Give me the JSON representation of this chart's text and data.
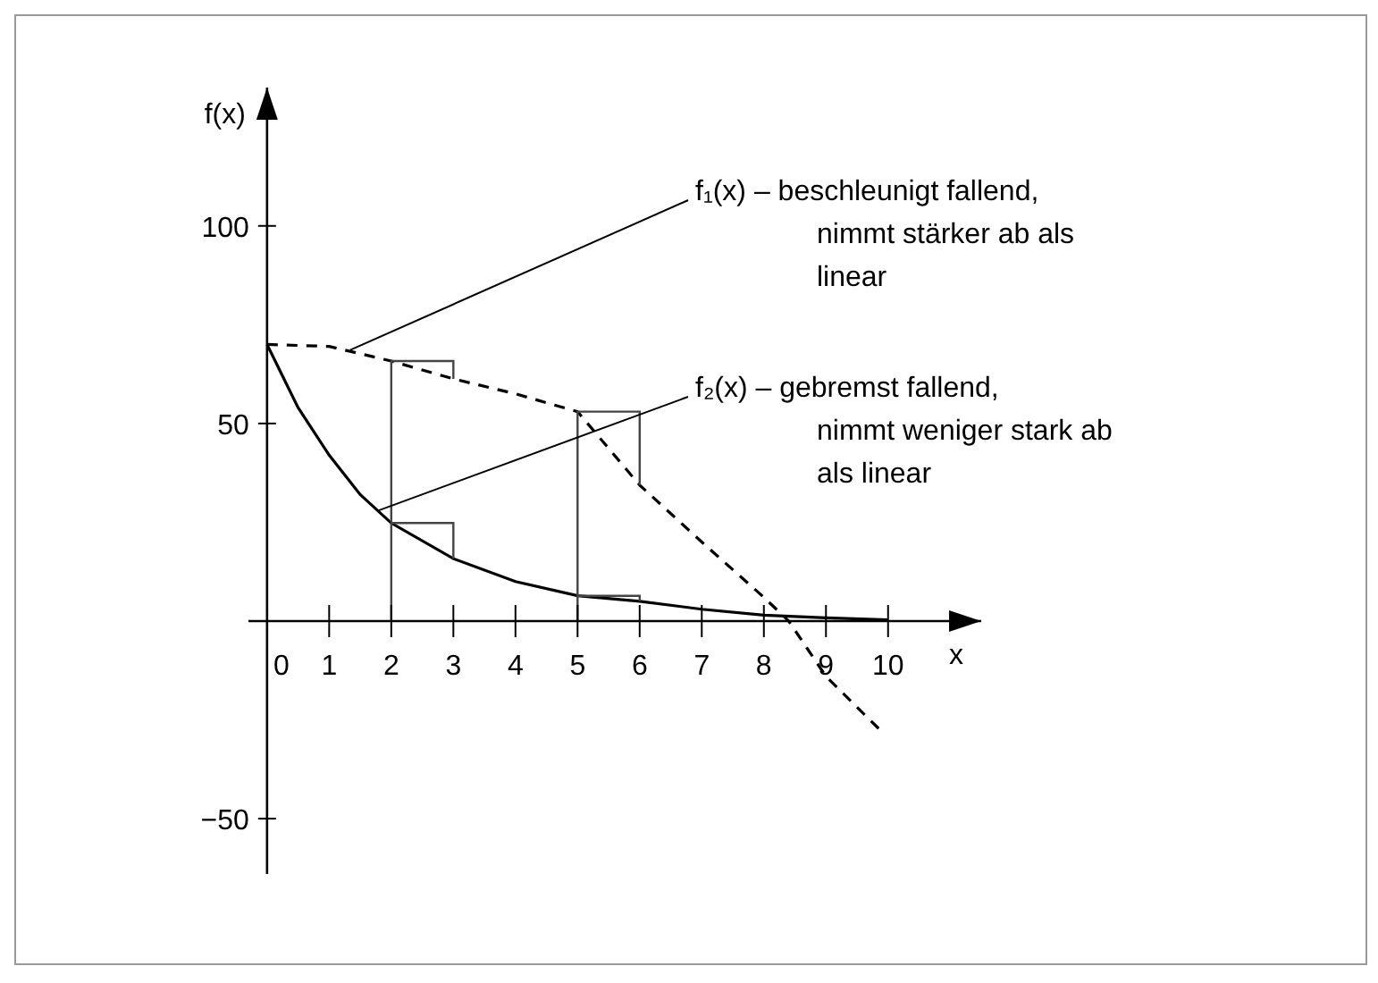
{
  "chart_data": {
    "type": "line",
    "xlabel": "x",
    "ylabel": "f(x)",
    "xlim": [
      -0.3,
      11.5
    ],
    "ylim": [
      -64,
      135
    ],
    "xticks": [
      0,
      1,
      2,
      3,
      4,
      5,
      6,
      7,
      8,
      9,
      10
    ],
    "yticks": [
      {
        "value": -50,
        "label": "−50"
      },
      50,
      100
    ],
    "marker": "none",
    "series": [
      {
        "x": [
          0,
          1,
          2,
          3,
          4,
          5,
          6,
          7,
          8,
          8.4,
          9,
          9.9
        ],
        "values": [
          70,
          69.5,
          65.8,
          61.3,
          57.5,
          53,
          34.4,
          20,
          6,
          0,
          -14,
          -28
        ],
        "color": "#000000",
        "line_style": "dashed"
      },
      {
        "x": [
          0,
          0.5,
          1,
          1.5,
          2,
          3,
          4,
          5,
          6,
          7,
          8,
          9,
          10
        ],
        "values": [
          70,
          54,
          42,
          32,
          24.8,
          15.8,
          10,
          6.4,
          5,
          3,
          1.5,
          0.8,
          0.3
        ],
        "color": "#000000",
        "line_style": "solid"
      },
      {
        "x": [
          2,
          2,
          3,
          3
        ],
        "values": [
          0,
          65.8,
          65.8,
          61.3
        ],
        "color": "#444444",
        "line_style": "solid"
      },
      {
        "x": [
          5,
          5,
          6,
          6
        ],
        "values": [
          0,
          53,
          53,
          34.4
        ],
        "color": "#444444",
        "line_style": "solid"
      },
      {
        "x": [
          2,
          3,
          3
        ],
        "values": [
          24.8,
          24.8,
          15.8
        ],
        "color": "#444444",
        "line_style": "solid"
      },
      {
        "x": [
          5,
          6,
          6
        ],
        "values": [
          6.4,
          6.4,
          5
        ],
        "color": "#444444",
        "line_style": "solid"
      }
    ],
    "annotations": [
      {
        "text": "f₁(x) – beschleunigt fallend, nimmt stärker ab als linear",
        "x": 1.34,
        "y": 68.6
      },
      {
        "text": "f₂(x) – gebremst fallend, nimmt weniger stark ab als linear",
        "x": 1.8,
        "y": 28
      }
    ]
  }
}
